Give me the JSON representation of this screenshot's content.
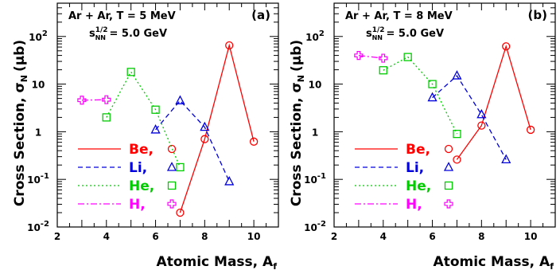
{
  "chart_data": [
    {
      "type": "line",
      "panel_label": "(a)",
      "header_line1": "Ar + Ar, T = 5 MeV",
      "header_line2_prefix": "s",
      "header_line2_sup": "1/2",
      "header_line2_sub": "NN",
      "header_line2_suffix": "= 5.0 GeV",
      "xlabel": "Atomic Mass, A",
      "xlabel_sub": "f",
      "ylabel": "Cross Section, σ",
      "ylabel_sub": "N",
      "ylabel_unit": "(μb)",
      "xlim": [
        2,
        11
      ],
      "ylim": [
        0.01,
        500
      ],
      "yscale": "log",
      "x_ticks": [
        "2",
        "4",
        "6",
        "8",
        "10"
      ],
      "y_ticks": [
        {
          "base": "10",
          "exp": "-2"
        },
        {
          "base": "10",
          "exp": "-1"
        },
        {
          "base": "1",
          "exp": ""
        },
        {
          "base": "10",
          "exp": ""
        },
        {
          "base": "10",
          "exp": "2"
        }
      ],
      "series": [
        {
          "name": "Be,",
          "color": "#ff0000",
          "dash": "solid",
          "marker": "circle",
          "x": [
            7,
            8,
            9,
            10
          ],
          "y": [
            0.02,
            0.7,
            65,
            0.62
          ]
        },
        {
          "name": "Li,",
          "color": "#0000dd",
          "dash": "dashed",
          "marker": "triangle",
          "x": [
            6,
            7,
            8,
            9
          ],
          "y": [
            1.1,
            4.5,
            1.25,
            0.09
          ]
        },
        {
          "name": "He,",
          "color": "#00cc00",
          "dash": "dotted",
          "marker": "square",
          "x": [
            4,
            5,
            6,
            7
          ],
          "y": [
            2.0,
            18,
            2.9,
            0.18
          ]
        },
        {
          "name": "H,",
          "color": "#ff00ff",
          "dash": "dashdot",
          "marker": "cross",
          "x": [
            3,
            4
          ],
          "y": [
            4.6,
            4.7
          ]
        }
      ]
    },
    {
      "type": "line",
      "panel_label": "(b)",
      "header_line1": "Ar + Ar, T = 8 MeV",
      "header_line2_prefix": "s",
      "header_line2_sup": "1/2",
      "header_line2_sub": "NN",
      "header_line2_suffix": "= 5.0 GeV",
      "xlabel": "Atomic Mass, A",
      "xlabel_sub": "f",
      "ylabel": "Cross Section, σ",
      "ylabel_sub": "N",
      "ylabel_unit": "(μb)",
      "xlim": [
        2,
        11
      ],
      "ylim": [
        0.01,
        500
      ],
      "yscale": "log",
      "x_ticks": [
        "2",
        "4",
        "6",
        "8",
        "10"
      ],
      "y_ticks": [
        {
          "base": "10",
          "exp": "-2"
        },
        {
          "base": "10",
          "exp": "-1"
        },
        {
          "base": "1",
          "exp": ""
        },
        {
          "base": "10",
          "exp": ""
        },
        {
          "base": "10",
          "exp": "2"
        }
      ],
      "series": [
        {
          "name": "Be,",
          "color": "#ff0000",
          "dash": "solid",
          "marker": "circle",
          "x": [
            7,
            8,
            9,
            10
          ],
          "y": [
            0.26,
            1.35,
            62,
            1.1
          ]
        },
        {
          "name": "Li,",
          "color": "#0000dd",
          "dash": "dashed",
          "marker": "triangle",
          "x": [
            6,
            7,
            8,
            9
          ],
          "y": [
            5.2,
            15,
            2.3,
            0.26
          ]
        },
        {
          "name": "He,",
          "color": "#00cc00",
          "dash": "dotted",
          "marker": "square",
          "x": [
            4,
            5,
            6,
            7
          ],
          "y": [
            19.5,
            37,
            10,
            0.9
          ]
        },
        {
          "name": "H,",
          "color": "#ff00ff",
          "dash": "dashdot",
          "marker": "cross",
          "x": [
            3,
            4
          ],
          "y": [
            40,
            35
          ]
        }
      ]
    }
  ]
}
